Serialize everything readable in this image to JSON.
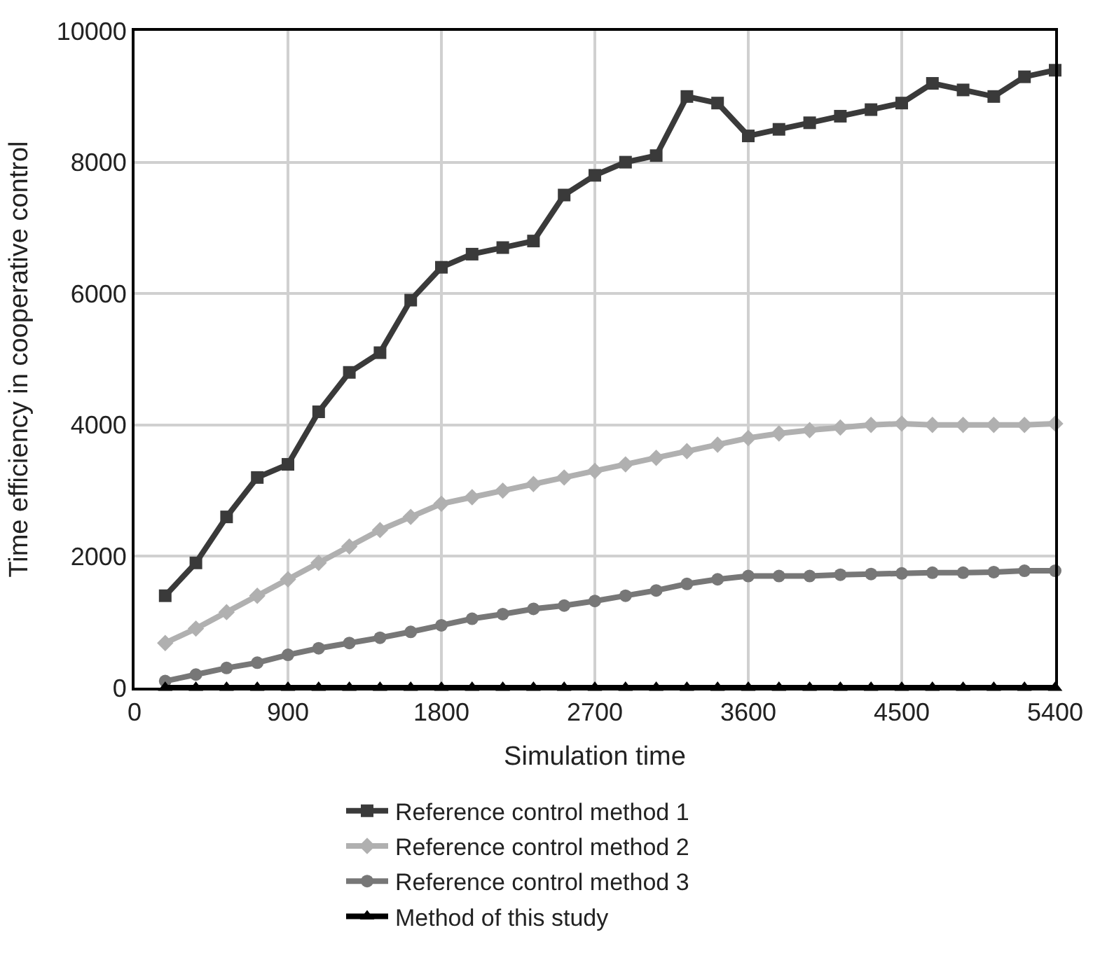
{
  "chart_data": {
    "type": "line",
    "xlabel": "Simulation time",
    "ylabel": "Time efficiency in cooperative control",
    "x": [
      180,
      360,
      540,
      720,
      900,
      1080,
      1260,
      1440,
      1620,
      1800,
      1980,
      2160,
      2340,
      2520,
      2700,
      2880,
      3060,
      3240,
      3420,
      3600,
      3780,
      3960,
      4140,
      4320,
      4500,
      4680,
      4860,
      5040,
      5220,
      5400
    ],
    "series": [
      {
        "name": "Reference control method 1",
        "color": "#3a3a3a",
        "marker": "square",
        "values": [
          1400,
          1900,
          2600,
          3200,
          3400,
          4200,
          4800,
          5100,
          5900,
          6400,
          6600,
          6700,
          6800,
          7500,
          7800,
          8000,
          8100,
          9000,
          8900,
          8400,
          8500,
          8600,
          8700,
          8800,
          8900,
          9200,
          9100,
          9000,
          9300,
          9400
        ]
      },
      {
        "name": "Reference control method 2",
        "color": "#b0b0b0",
        "marker": "diamond",
        "values": [
          680,
          900,
          1150,
          1400,
          1650,
          1900,
          2150,
          2400,
          2600,
          2800,
          2900,
          3000,
          3100,
          3200,
          3300,
          3400,
          3500,
          3600,
          3700,
          3800,
          3870,
          3920,
          3960,
          4000,
          4020,
          4000,
          4000,
          4000,
          4000,
          4020
        ]
      },
      {
        "name": "Reference control method 3",
        "color": "#777777",
        "marker": "circle",
        "values": [
          100,
          200,
          300,
          380,
          500,
          600,
          680,
          760,
          850,
          950,
          1050,
          1120,
          1200,
          1250,
          1320,
          1400,
          1480,
          1580,
          1650,
          1700,
          1700,
          1700,
          1720,
          1730,
          1740,
          1750,
          1750,
          1760,
          1780,
          1780
        ]
      },
      {
        "name": "Method of this study",
        "color": "#000000",
        "marker": "triangle",
        "values": [
          0,
          0,
          0,
          0,
          0,
          0,
          0,
          0,
          0,
          0,
          0,
          0,
          0,
          0,
          0,
          0,
          0,
          0,
          0,
          0,
          0,
          0,
          0,
          0,
          0,
          0,
          0,
          0,
          0,
          0
        ]
      }
    ],
    "xlim": [
      0,
      5400
    ],
    "xticks": [
      0,
      900,
      1800,
      2700,
      3600,
      4500,
      5400
    ],
    "ylim": [
      0,
      10000
    ],
    "yticks": [
      0,
      2000,
      4000,
      6000,
      8000,
      10000
    ],
    "grid": true,
    "legend": "bottom",
    "line_style": "solid"
  }
}
